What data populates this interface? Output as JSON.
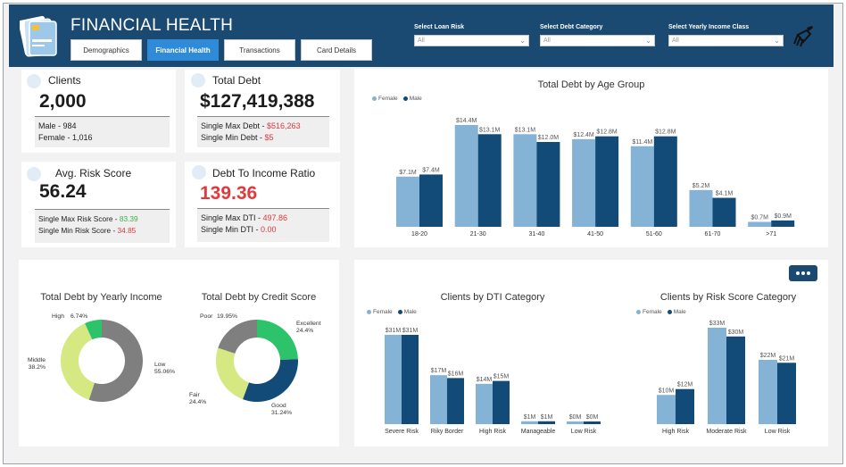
{
  "header": {
    "title": "FINANCIAL HEALTH",
    "tabs": [
      {
        "label": "Demographics",
        "active": false
      },
      {
        "label": "Financial Health",
        "active": true
      },
      {
        "label": "Transactions",
        "active": false
      },
      {
        "label": "Card Details",
        "active": false
      }
    ],
    "filters": [
      {
        "label": "Select Loan Risk",
        "value": "All"
      },
      {
        "label": "Select Debt Category",
        "value": "All"
      },
      {
        "label": "Select Yearly Income Class",
        "value": "All"
      }
    ]
  },
  "kpis": {
    "clients": {
      "title": "Clients",
      "value": "2,000",
      "line1_label": "Male - ",
      "line1_value": "984",
      "line2_label": "Female - ",
      "line2_value": "1,016"
    },
    "total_debt": {
      "title": "Total Debt",
      "value": "$127,419,388",
      "line1_label": "Single Max Debt - ",
      "line1_value": "$516,263",
      "line2_label": "Single Min Debt - ",
      "line2_value": "$5"
    },
    "risk": {
      "title": "Avg. Risk Score",
      "value": "56.24",
      "line1_label": "Single Max Risk Score - ",
      "line1_value": "83.39",
      "line2_label": "Single Min Risk Score - ",
      "line2_value": "34.85"
    },
    "dti": {
      "title": "Debt To Income Ratio",
      "value": "139.36",
      "line1_label": "Single Max DTI - ",
      "line1_value": "497.86",
      "line2_label": "Single Min DTI - ",
      "line2_value": "0.00"
    }
  },
  "colors": {
    "female": "#85b3d6",
    "male": "#124b77",
    "grey": "#7f7f7f",
    "lime": "#d5e882",
    "green": "#2cc36b",
    "navy": "#124b77"
  },
  "chart_data": [
    {
      "type": "bar",
      "title": "Total Debt by Age Group",
      "categories": [
        "18-20",
        "21-30",
        "31-40",
        "41-50",
        "51-60",
        "61-70",
        ">71"
      ],
      "series": [
        {
          "name": "Female",
          "values": [
            7.1,
            14.4,
            13.1,
            12.4,
            11.4,
            5.2,
            0.7
          ],
          "labels": [
            "$7.1M",
            "$14.4M",
            "$13.1M",
            "$12.4M",
            "$11.4M",
            "$5.2M",
            "$0.7M"
          ]
        },
        {
          "name": "Male",
          "values": [
            7.4,
            13.1,
            12.0,
            12.8,
            12.8,
            4.1,
            0.9
          ],
          "labels": [
            "$7.4M",
            "$13.1M",
            "$12.0M",
            "$12.8M",
            "$12.8M",
            "$4.1M",
            "$0.9M"
          ]
        }
      ],
      "ylim": [
        0,
        14.4
      ]
    },
    {
      "type": "pie",
      "title": "Total Debt by Yearly Income",
      "slices": [
        {
          "label": "Low",
          "pct_label": "55.06%",
          "value": 55.06,
          "color": "#7f7f7f"
        },
        {
          "label": "Middle",
          "pct_label": "38.2%",
          "value": 38.2,
          "color": "#d5e882"
        },
        {
          "label": "High",
          "pct_label": "6.74%",
          "value": 6.74,
          "color": "#2cc36b"
        }
      ]
    },
    {
      "type": "pie",
      "title": "Total Debt by Credit Score",
      "slices": [
        {
          "label": "Excellent",
          "pct_label": "24.4%",
          "value": 24.4,
          "color": "#2cc36b"
        },
        {
          "label": "Good",
          "pct_label": "31.24%",
          "value": 31.24,
          "color": "#124b77"
        },
        {
          "label": "Fair",
          "pct_label": "24.4%",
          "value": 24.4,
          "color": "#d5e882"
        },
        {
          "label": "Poor",
          "pct_label": "19.95%",
          "value": 19.95,
          "color": "#7f7f7f"
        }
      ]
    },
    {
      "type": "bar",
      "title": "Clients by DTI Category",
      "categories": [
        "Severe Risk",
        "Riky Border",
        "High Risk",
        "Manageable",
        "Low Risk"
      ],
      "series": [
        {
          "name": "Female",
          "values": [
            31,
            17,
            14,
            1,
            0
          ],
          "labels": [
            "$31M",
            "$17M",
            "$14M",
            "$1M",
            "$0M"
          ]
        },
        {
          "name": "Male",
          "values": [
            31,
            16,
            15,
            1,
            0
          ],
          "labels": [
            "$31M",
            "$16M",
            "$15M",
            "$1M",
            "$0M"
          ]
        }
      ],
      "ylim": [
        0,
        31
      ]
    },
    {
      "type": "bar",
      "title": "Clients by Risk Score Category",
      "categories": [
        "High Risk",
        "Moderate Risk",
        "Low Risk"
      ],
      "series": [
        {
          "name": "Female",
          "values": [
            10,
            33,
            22
          ],
          "labels": [
            "$10M",
            "$33M",
            "$22M"
          ]
        },
        {
          "name": "Male",
          "values": [
            12,
            30,
            21
          ],
          "labels": [
            "$12M",
            "$30M",
            "$21M"
          ]
        }
      ],
      "ylim": [
        0,
        33
      ]
    }
  ]
}
